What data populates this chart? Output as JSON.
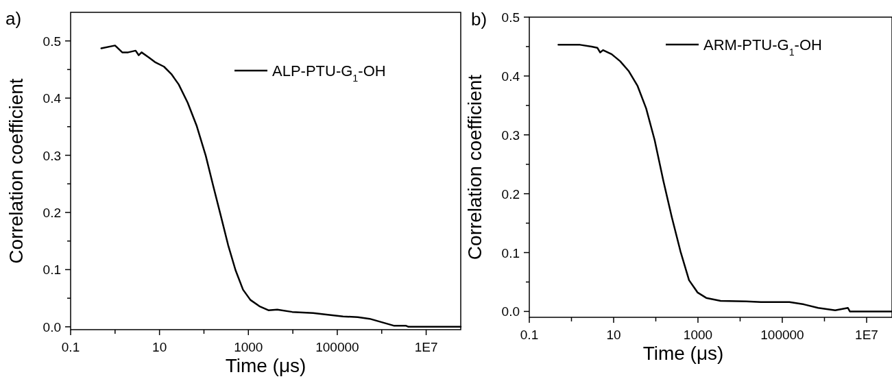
{
  "chart_data": [
    {
      "type": "line",
      "title": "a)",
      "xlabel": "Time (μs)",
      "ylabel": "Correlation coefficient",
      "log": "x",
      "legend": "top right",
      "grid": false,
      "line_style": "solid",
      "xlim": [
        0.1,
        60000000
      ],
      "xticks": [
        0.1,
        {
          "value": 1,
          "label": null
        },
        10,
        {
          "value": 100,
          "label": null
        },
        1000,
        {
          "value": 10000,
          "label": null
        },
        100000,
        {
          "value": 1000000,
          "label": null
        },
        {
          "value": 10000000,
          "label": "1E7"
        }
      ],
      "ylim": [
        -0.005,
        0.55
      ],
      "yticks": [
        "0.0",
        {
          "value": 0.05,
          "label": null
        },
        0.1,
        {
          "value": 0.15,
          "label": null
        },
        0.2,
        {
          "value": 0.25,
          "label": null
        },
        0.3,
        {
          "value": 0.35,
          "label": null
        },
        0.4,
        {
          "value": 0.45,
          "label": null
        },
        0.5
      ],
      "series": [
        {
          "name": "ALP-PTU-G$_{1}$-OH",
          "color": "#000000",
          "x": [
            0.49,
            1.0,
            1.45,
            1.97,
            2.9,
            3.4,
            3.95,
            5.8,
            7.9,
            12.6,
            18.5,
            27,
            43,
            69,
            110,
            161,
            238,
            350,
            514,
            757,
            1110,
            1770,
            2820,
            4470,
            9700,
            28600,
            61700,
            135000,
            289000,
            537000,
            1000000,
            1860000,
            3470000,
            4000000,
            60000000
          ],
          "values": [
            0.487,
            0.492,
            0.48,
            0.48,
            0.483,
            0.475,
            0.48,
            0.471,
            0.463,
            0.455,
            0.442,
            0.424,
            0.392,
            0.351,
            0.299,
            0.247,
            0.195,
            0.143,
            0.099,
            0.065,
            0.047,
            0.036,
            0.029,
            0.03,
            0.026,
            0.024,
            0.021,
            0.018,
            0.017,
            0.014,
            0.008,
            0.002,
            0.002,
            0,
            0
          ]
        }
      ]
    },
    {
      "type": "line",
      "title": "b)",
      "xlabel": "Time (μs)",
      "ylabel": "Correlation coefficient",
      "log": "x",
      "legend": "top right",
      "grid": false,
      "line_style": "solid",
      "xlim": [
        0.1,
        40000000
      ],
      "xticks": [
        0.1,
        {
          "value": 1,
          "label": null
        },
        10,
        {
          "value": 100,
          "label": null
        },
        1000,
        {
          "value": 10000,
          "label": null
        },
        100000,
        {
          "value": 1000000,
          "label": null
        },
        {
          "value": 10000000,
          "label": "1E7"
        }
      ],
      "ylim": [
        -0.01,
        0.5
      ],
      "yticks": [
        "0.0",
        {
          "value": 0.05,
          "label": null
        },
        0.1,
        {
          "value": 0.15,
          "label": null
        },
        0.2,
        {
          "value": 0.25,
          "label": null
        },
        0.3,
        {
          "value": 0.35,
          "label": null
        },
        0.4,
        {
          "value": 0.45,
          "label": null
        },
        0.5
      ],
      "series": [
        {
          "name": "ARM-PTU-G$_{1}$-OH",
          "color": "#000000",
          "x": [
            0.49,
            1.6,
            3.0,
            4.1,
            4.8,
            5.6,
            9.0,
            14.3,
            23,
            37,
            59,
            94,
            150,
            240,
            385,
            615,
            985,
            1570,
            3440,
            14000,
            31000,
            148000,
            324000,
            708000,
            1800000,
            3600000,
            4000000,
            40000000
          ],
          "values": [
            0.453,
            0.453,
            0.45,
            0.448,
            0.44,
            0.444,
            0.437,
            0.425,
            0.408,
            0.383,
            0.345,
            0.291,
            0.223,
            0.16,
            0.102,
            0.053,
            0.032,
            0.023,
            0.018,
            0.017,
            0.016,
            0.016,
            0.012,
            0.006,
            0.002,
            0.006,
            0,
            0
          ]
        }
      ]
    }
  ]
}
